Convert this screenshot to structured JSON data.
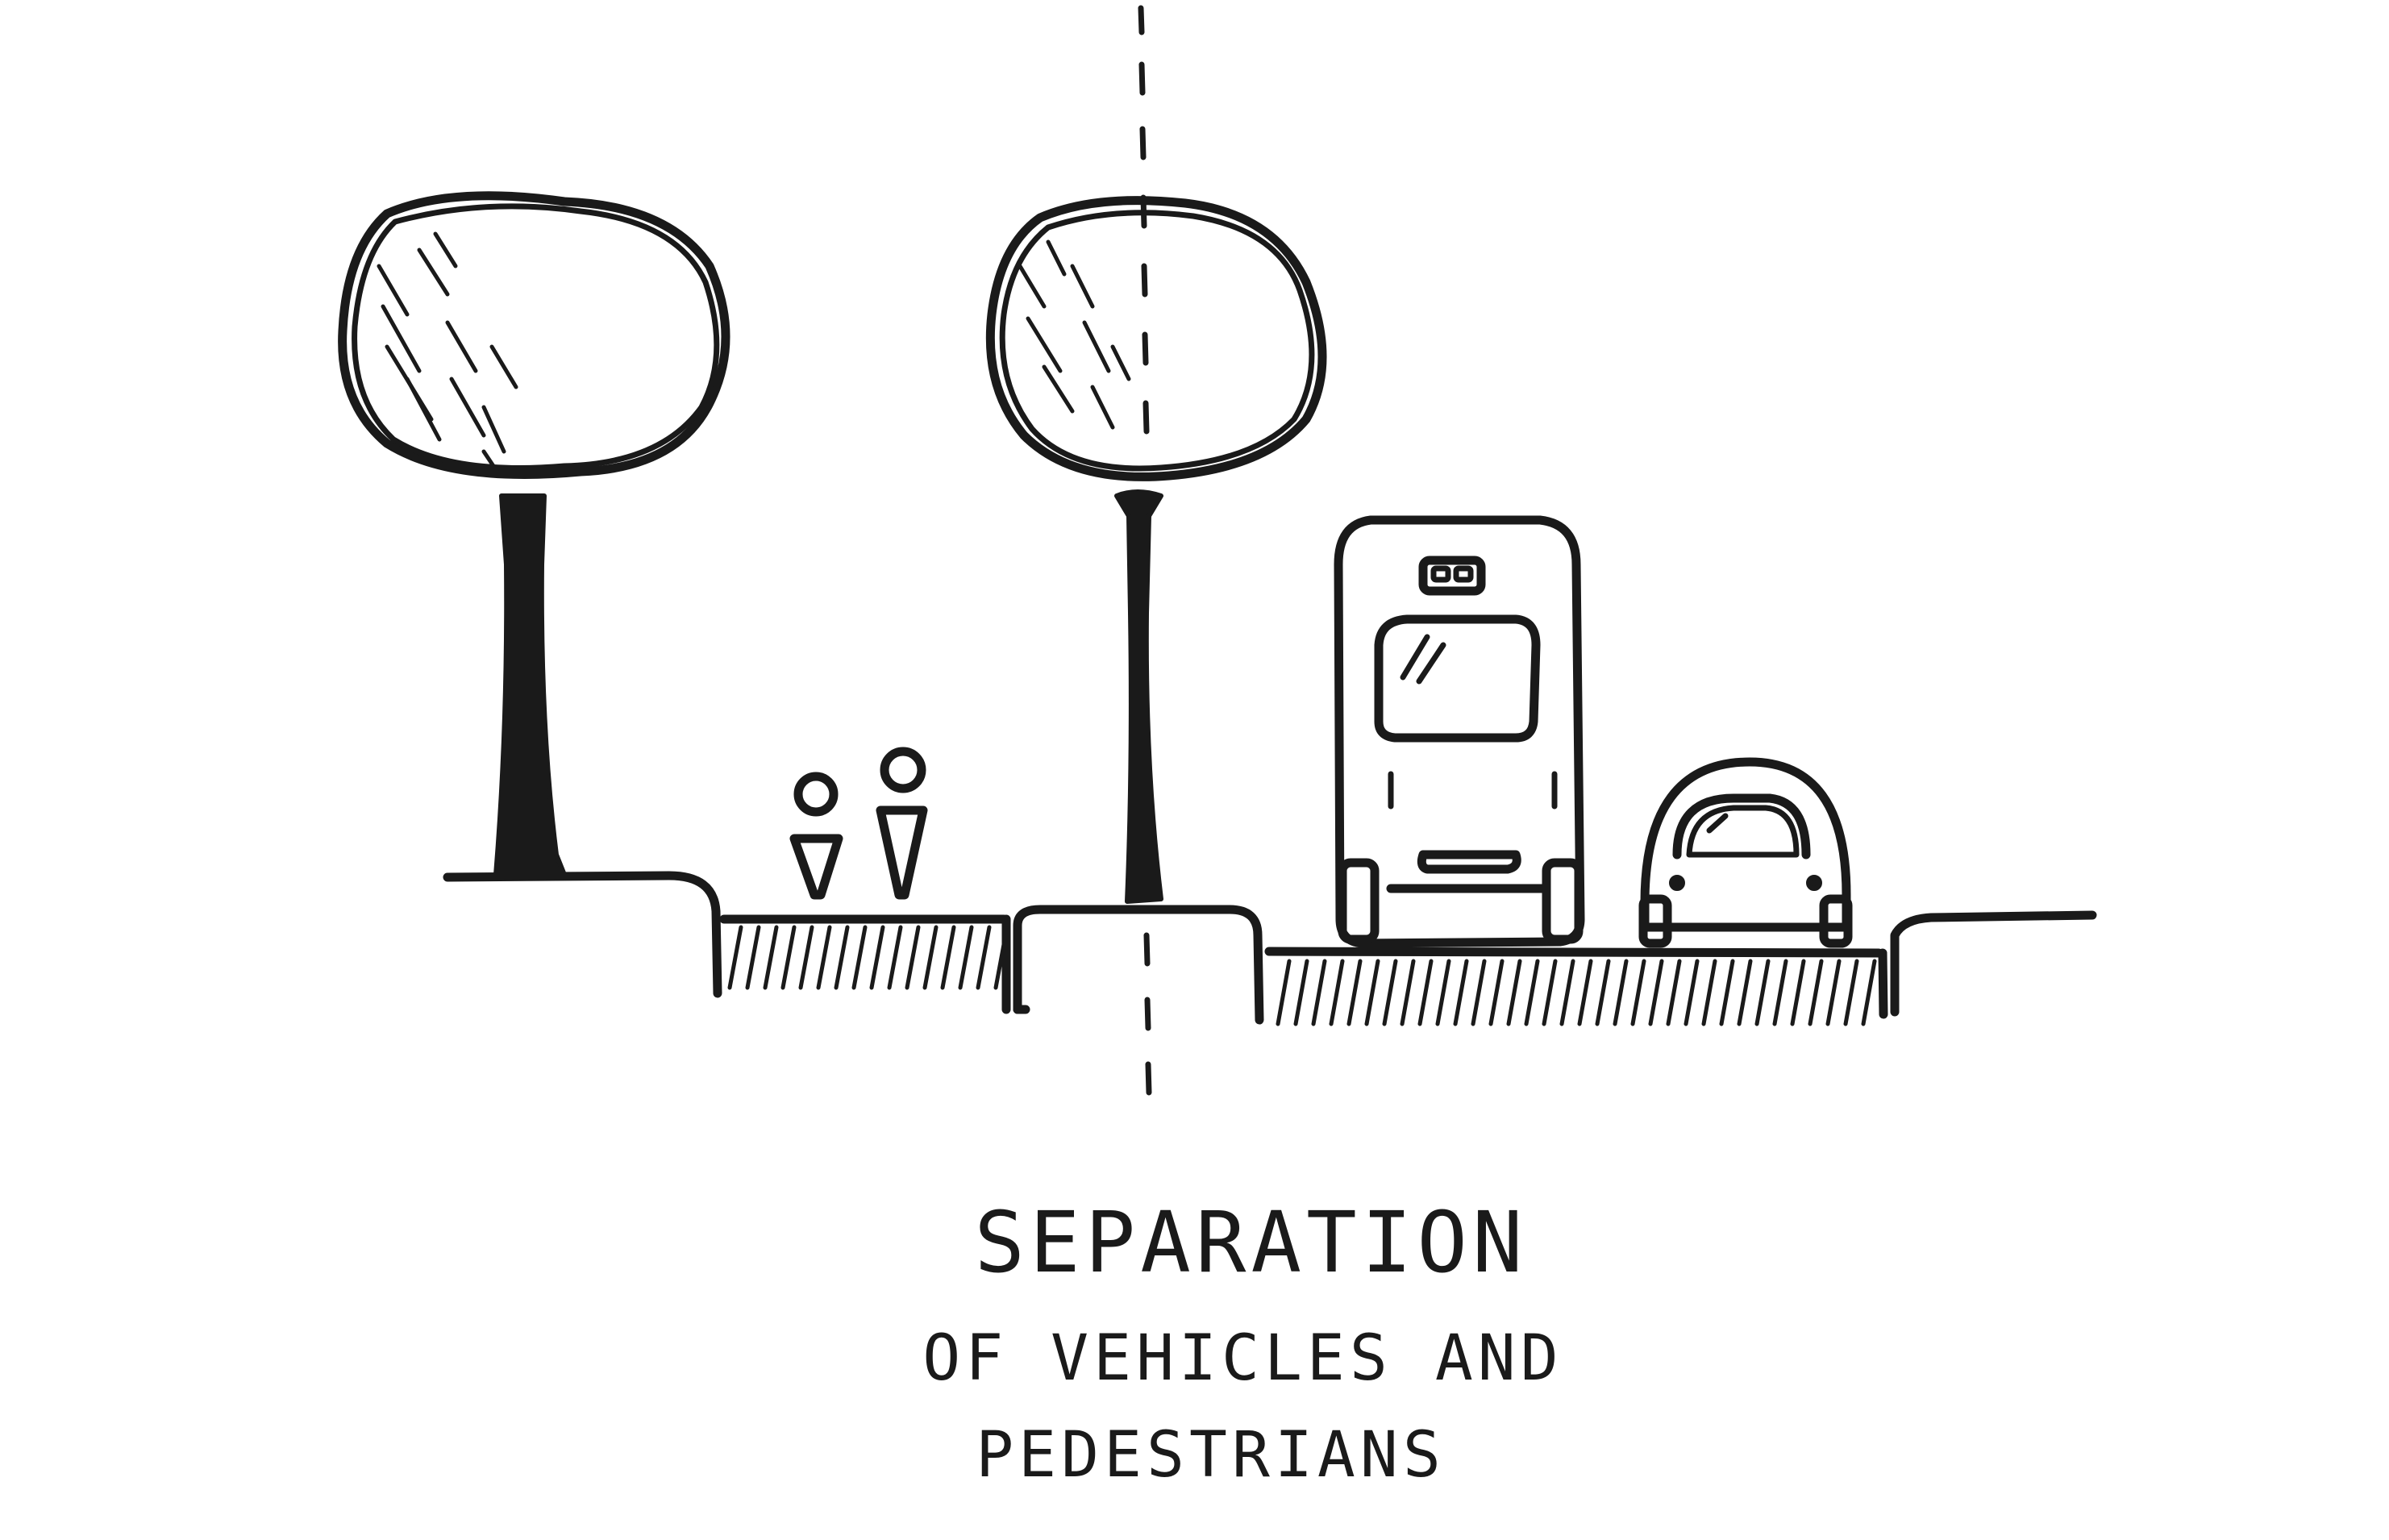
{
  "caption": {
    "title": "SEPARATION",
    "line1": "OF VEHICLES AND",
    "line2": "PEDESTRIANS"
  },
  "colors": {
    "ink": "#1a1a1a",
    "paper": "#ffffff"
  },
  "figures": [
    "tree",
    "tree",
    "pedestrian",
    "pedestrian",
    "bus",
    "car",
    "center-divider"
  ]
}
